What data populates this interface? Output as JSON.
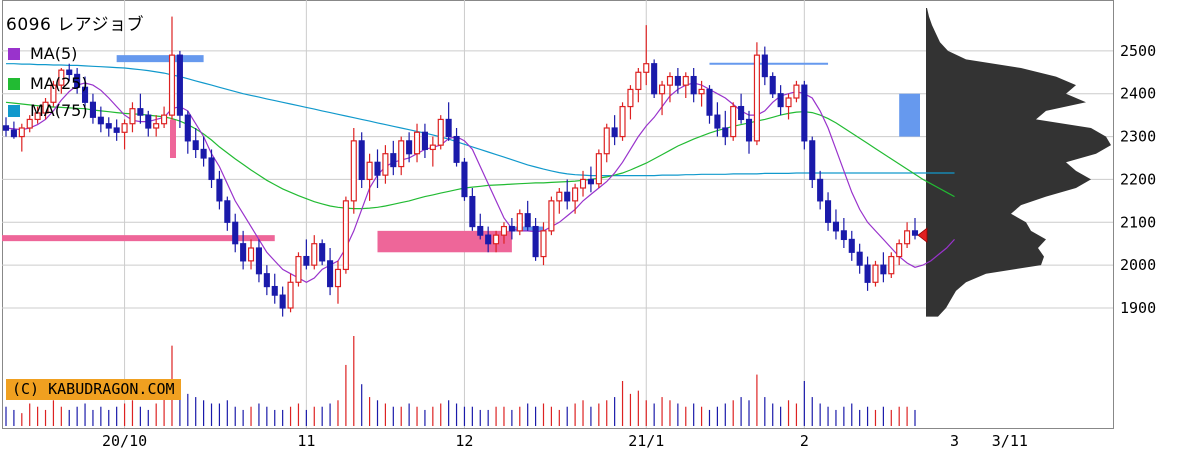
{
  "chart_data": {
    "type": "candlestick",
    "title": "6096 レアジョブ",
    "legend": [
      {
        "name": "MA(5)",
        "color": "#9933cc"
      },
      {
        "name": "MA(25)",
        "color": "#22bb33"
      },
      {
        "name": "MA(75)",
        "color": "#1199cc"
      }
    ],
    "copyright": "(C) KABUDRAGON.COM",
    "y_ticks": [
      1900,
      2000,
      2100,
      2200,
      2300,
      2400,
      2500
    ],
    "ylim": [
      1830,
      2600
    ],
    "x_ticks": [
      {
        "label": "20/10",
        "index": 15
      },
      {
        "label": "11",
        "index": 38
      },
      {
        "label": "12",
        "index": 58
      },
      {
        "label": "21/1",
        "index": 81
      },
      {
        "label": "2",
        "index": 101
      },
      {
        "label": "3",
        "index": 120
      },
      {
        "label": "3/11",
        "index": 127
      }
    ],
    "current_price": 2070,
    "colors": {
      "up": "#dd2222",
      "down": "#1a1aaa",
      "profile": "#333333",
      "pink_band": "#ee6699",
      "blue_band": "#6699ee"
    },
    "candles": [
      [
        2325,
        2345,
        2300,
        2315
      ],
      [
        2315,
        2335,
        2295,
        2300
      ],
      [
        2300,
        2330,
        2265,
        2320
      ],
      [
        2320,
        2350,
        2310,
        2340
      ],
      [
        2340,
        2370,
        2330,
        2355
      ],
      [
        2355,
        2390,
        2340,
        2380
      ],
      [
        2380,
        2430,
        2370,
        2420
      ],
      [
        2420,
        2460,
        2400,
        2455
      ],
      [
        2455,
        2470,
        2430,
        2445
      ],
      [
        2445,
        2460,
        2400,
        2415
      ],
      [
        2415,
        2440,
        2370,
        2380
      ],
      [
        2380,
        2400,
        2330,
        2345
      ],
      [
        2345,
        2370,
        2310,
        2330
      ],
      [
        2330,
        2345,
        2300,
        2320
      ],
      [
        2320,
        2340,
        2290,
        2310
      ],
      [
        2310,
        2340,
        2270,
        2330
      ],
      [
        2330,
        2380,
        2310,
        2365
      ],
      [
        2365,
        2400,
        2330,
        2350
      ],
      [
        2350,
        2360,
        2300,
        2320
      ],
      [
        2320,
        2350,
        2300,
        2330
      ],
      [
        2330,
        2370,
        2320,
        2350
      ],
      [
        2350,
        2580,
        2340,
        2490
      ],
      [
        2490,
        2500,
        2320,
        2350
      ],
      [
        2350,
        2360,
        2260,
        2290
      ],
      [
        2290,
        2320,
        2250,
        2270
      ],
      [
        2270,
        2300,
        2230,
        2250
      ],
      [
        2250,
        2270,
        2180,
        2200
      ],
      [
        2200,
        2220,
        2130,
        2150
      ],
      [
        2150,
        2160,
        2080,
        2100
      ],
      [
        2100,
        2120,
        2030,
        2050
      ],
      [
        2050,
        2080,
        1990,
        2010
      ],
      [
        2010,
        2060,
        1990,
        2040
      ],
      [
        2040,
        2060,
        1960,
        1980
      ],
      [
        1980,
        2000,
        1930,
        1950
      ],
      [
        1950,
        1980,
        1910,
        1930
      ],
      [
        1930,
        1950,
        1880,
        1900
      ],
      [
        1900,
        1980,
        1890,
        1960
      ],
      [
        1960,
        2030,
        1950,
        2020
      ],
      [
        2020,
        2060,
        1990,
        2000
      ],
      [
        2000,
        2070,
        1990,
        2050
      ],
      [
        2050,
        2060,
        2000,
        2010
      ],
      [
        2010,
        2040,
        1930,
        1950
      ],
      [
        1950,
        2010,
        1910,
        1990
      ],
      [
        1990,
        2160,
        1980,
        2150
      ],
      [
        2150,
        2320,
        2120,
        2290
      ],
      [
        2290,
        2310,
        2180,
        2200
      ],
      [
        2200,
        2260,
        2150,
        2240
      ],
      [
        2240,
        2270,
        2180,
        2210
      ],
      [
        2210,
        2280,
        2190,
        2260
      ],
      [
        2260,
        2290,
        2210,
        2230
      ],
      [
        2230,
        2300,
        2210,
        2290
      ],
      [
        2290,
        2310,
        2240,
        2260
      ],
      [
        2260,
        2330,
        2240,
        2310
      ],
      [
        2310,
        2330,
        2250,
        2270
      ],
      [
        2270,
        2300,
        2230,
        2280
      ],
      [
        2280,
        2350,
        2270,
        2340
      ],
      [
        2340,
        2380,
        2290,
        2300
      ],
      [
        2300,
        2320,
        2230,
        2240
      ],
      [
        2240,
        2250,
        2150,
        2160
      ],
      [
        2160,
        2180,
        2080,
        2090
      ],
      [
        2090,
        2120,
        2060,
        2070
      ],
      [
        2070,
        2090,
        2030,
        2050
      ],
      [
        2050,
        2080,
        2030,
        2070
      ],
      [
        2070,
        2100,
        2050,
        2090
      ],
      [
        2090,
        2110,
        2060,
        2080
      ],
      [
        2080,
        2130,
        2070,
        2120
      ],
      [
        2120,
        2150,
        2080,
        2090
      ],
      [
        2090,
        2110,
        2010,
        2020
      ],
      [
        2020,
        2100,
        2000,
        2080
      ],
      [
        2080,
        2160,
        2070,
        2150
      ],
      [
        2150,
        2180,
        2120,
        2170
      ],
      [
        2170,
        2200,
        2130,
        2150
      ],
      [
        2150,
        2190,
        2120,
        2180
      ],
      [
        2180,
        2220,
        2160,
        2200
      ],
      [
        2200,
        2230,
        2170,
        2190
      ],
      [
        2190,
        2270,
        2180,
        2260
      ],
      [
        2260,
        2330,
        2240,
        2320
      ],
      [
        2320,
        2350,
        2280,
        2300
      ],
      [
        2300,
        2380,
        2290,
        2370
      ],
      [
        2370,
        2420,
        2340,
        2410
      ],
      [
        2410,
        2460,
        2380,
        2450
      ],
      [
        2450,
        2560,
        2420,
        2470
      ],
      [
        2470,
        2480,
        2390,
        2400
      ],
      [
        2400,
        2430,
        2350,
        2420
      ],
      [
        2420,
        2450,
        2380,
        2440
      ],
      [
        2440,
        2460,
        2400,
        2420
      ],
      [
        2420,
        2450,
        2390,
        2440
      ],
      [
        2440,
        2460,
        2380,
        2400
      ],
      [
        2400,
        2430,
        2370,
        2410
      ],
      [
        2410,
        2420,
        2330,
        2350
      ],
      [
        2350,
        2380,
        2300,
        2320
      ],
      [
        2320,
        2360,
        2280,
        2300
      ],
      [
        2300,
        2380,
        2290,
        2370
      ],
      [
        2370,
        2400,
        2330,
        2340
      ],
      [
        2340,
        2360,
        2260,
        2290
      ],
      [
        2290,
        2520,
        2280,
        2490
      ],
      [
        2490,
        2510,
        2420,
        2440
      ],
      [
        2440,
        2450,
        2390,
        2400
      ],
      [
        2400,
        2420,
        2350,
        2370
      ],
      [
        2370,
        2400,
        2340,
        2390
      ],
      [
        2390,
        2430,
        2380,
        2420
      ],
      [
        2420,
        2430,
        2270,
        2290
      ],
      [
        2290,
        2300,
        2180,
        2200
      ],
      [
        2200,
        2220,
        2130,
        2150
      ],
      [
        2150,
        2170,
        2080,
        2100
      ],
      [
        2100,
        2130,
        2060,
        2080
      ],
      [
        2080,
        2110,
        2040,
        2060
      ],
      [
        2060,
        2080,
        2010,
        2030
      ],
      [
        2030,
        2050,
        1980,
        2000
      ],
      [
        2000,
        2020,
        1940,
        1960
      ],
      [
        1960,
        2010,
        1950,
        2000
      ],
      [
        2000,
        2030,
        1960,
        1980
      ],
      [
        1980,
        2030,
        1970,
        2020
      ],
      [
        2020,
        2060,
        2000,
        2050
      ],
      [
        2050,
        2100,
        2040,
        2080
      ],
      [
        2080,
        2110,
        2060,
        2070
      ]
    ],
    "volumes": [
      6,
      5,
      4,
      7,
      6,
      5,
      8,
      6,
      5,
      6,
      7,
      5,
      6,
      5,
      6,
      7,
      8,
      6,
      5,
      7,
      9,
      25,
      14,
      10,
      9,
      8,
      7,
      7,
      8,
      6,
      5,
      6,
      7,
      6,
      5,
      5,
      6,
      7,
      5,
      6,
      6,
      7,
      8,
      19,
      28,
      13,
      9,
      8,
      7,
      6,
      6,
      7,
      6,
      5,
      6,
      7,
      8,
      7,
      6,
      6,
      5,
      5,
      6,
      6,
      5,
      6,
      7,
      6,
      7,
      6,
      5,
      6,
      7,
      8,
      6,
      7,
      8,
      9,
      14,
      10,
      11,
      8,
      7,
      9,
      8,
      7,
      6,
      7,
      6,
      5,
      6,
      7,
      8,
      9,
      8,
      16,
      9,
      7,
      6,
      8,
      7,
      14,
      9,
      7,
      6,
      5,
      6,
      7,
      5,
      6,
      5,
      6,
      5,
      6,
      6,
      5,
      5,
      6,
      5,
      6,
      5
    ],
    "ma5": [
      2320,
      2318,
      2316,
      2320,
      2328,
      2340,
      2360,
      2385,
      2405,
      2420,
      2425,
      2420,
      2408,
      2390,
      2370,
      2350,
      2338,
      2335,
      2335,
      2340,
      2345,
      2365,
      2370,
      2360,
      2330,
      2300,
      2260,
      2230,
      2190,
      2150,
      2120,
      2090,
      2060,
      2030,
      2010,
      1990,
      1980,
      1970,
      1960,
      1970,
      1990,
      2000,
      2010,
      2040,
      2080,
      2130,
      2180,
      2210,
      2230,
      2240,
      2245,
      2250,
      2260,
      2270,
      2275,
      2280,
      2295,
      2300,
      2290,
      2270,
      2230,
      2190,
      2150,
      2110,
      2085,
      2080,
      2080,
      2078,
      2080,
      2090,
      2100,
      2115,
      2130,
      2150,
      2165,
      2180,
      2195,
      2215,
      2240,
      2270,
      2300,
      2325,
      2345,
      2370,
      2395,
      2410,
      2420,
      2425,
      2420,
      2410,
      2400,
      2390,
      2375,
      2360,
      2350,
      2350,
      2360,
      2380,
      2395,
      2400,
      2405,
      2400,
      2390,
      2360,
      2320,
      2270,
      2220,
      2170,
      2130,
      2100,
      2080,
      2060,
      2040,
      2020,
      2005,
      1995,
      2000,
      2010,
      2025,
      2040,
      2060
    ],
    "ma25": [
      2380,
      2378,
      2376,
      2374,
      2372,
      2370,
      2369,
      2368,
      2367,
      2366,
      2365,
      2362,
      2360,
      2358,
      2356,
      2354,
      2353,
      2352,
      2350,
      2348,
      2346,
      2342,
      2336,
      2328,
      2318,
      2306,
      2292,
      2276,
      2262,
      2248,
      2235,
      2222,
      2210,
      2198,
      2188,
      2178,
      2170,
      2162,
      2155,
      2148,
      2143,
      2138,
      2135,
      2133,
      2132,
      2132,
      2133,
      2135,
      2138,
      2142,
      2146,
      2150,
      2155,
      2160,
      2164,
      2168,
      2172,
      2176,
      2180,
      2182,
      2184,
      2186,
      2187,
      2188,
      2189,
      2190,
      2191,
      2192,
      2192,
      2193,
      2194,
      2195,
      2196,
      2198,
      2200,
      2203,
      2206,
      2210,
      2215,
      2222,
      2230,
      2238,
      2248,
      2258,
      2268,
      2278,
      2286,
      2294,
      2301,
      2308,
      2314,
      2319,
      2324,
      2328,
      2332,
      2336,
      2340,
      2345,
      2350,
      2354,
      2357,
      2358,
      2356,
      2350,
      2342,
      2332,
      2320,
      2308,
      2296,
      2284,
      2272,
      2260,
      2248,
      2236,
      2224,
      2212,
      2200,
      2190,
      2180,
      2170,
      2160
    ],
    "ma75": [
      2470,
      2470,
      2469,
      2469,
      2468,
      2468,
      2467,
      2467,
      2466,
      2466,
      2465,
      2464,
      2463,
      2462,
      2461,
      2460,
      2458,
      2456,
      2454,
      2451,
      2448,
      2444,
      2440,
      2435,
      2430,
      2425,
      2420,
      2415,
      2410,
      2405,
      2400,
      2396,
      2392,
      2388,
      2384,
      2380,
      2376,
      2372,
      2368,
      2364,
      2360,
      2356,
      2352,
      2348,
      2344,
      2340,
      2336,
      2332,
      2328,
      2324,
      2320,
      2316,
      2312,
      2308,
      2304,
      2299,
      2294,
      2288,
      2282,
      2276,
      2270,
      2264,
      2258,
      2252,
      2246,
      2240,
      2234,
      2229,
      2224,
      2220,
      2216,
      2213,
      2211,
      2210,
      2209,
      2209,
      2209,
      2209,
      2209,
      2209,
      2209,
      2209,
      2209,
      2210,
      2210,
      2210,
      2211,
      2211,
      2212,
      2212,
      2212,
      2212,
      2213,
      2213,
      2213,
      2213,
      2214,
      2214,
      2214,
      2214,
      2215,
      2215,
      2215,
      2215,
      2215,
      2215,
      2215,
      2215,
      2215,
      2215,
      2215,
      2215,
      2215,
      2215,
      2215,
      2215,
      2215,
      2215,
      2215,
      2215,
      2215
    ],
    "profile": [
      [
        2600,
        1
      ],
      [
        2580,
        3
      ],
      [
        2560,
        6
      ],
      [
        2540,
        10
      ],
      [
        2520,
        14
      ],
      [
        2500,
        22
      ],
      [
        2480,
        40
      ],
      [
        2460,
        95
      ],
      [
        2440,
        130
      ],
      [
        2420,
        150
      ],
      [
        2400,
        140
      ],
      [
        2380,
        160
      ],
      [
        2360,
        120
      ],
      [
        2340,
        110
      ],
      [
        2320,
        165
      ],
      [
        2300,
        180
      ],
      [
        2280,
        185
      ],
      [
        2260,
        170
      ],
      [
        2240,
        140
      ],
      [
        2220,
        150
      ],
      [
        2200,
        165
      ],
      [
        2180,
        150
      ],
      [
        2160,
        120
      ],
      [
        2140,
        95
      ],
      [
        2120,
        85
      ],
      [
        2100,
        100
      ],
      [
        2080,
        105
      ],
      [
        2060,
        120
      ],
      [
        2040,
        112
      ],
      [
        2020,
        118
      ],
      [
        2000,
        115
      ],
      [
        1980,
        60
      ],
      [
        1960,
        40
      ],
      [
        1940,
        30
      ],
      [
        1920,
        25
      ],
      [
        1900,
        20
      ],
      [
        1880,
        12
      ]
    ]
  }
}
